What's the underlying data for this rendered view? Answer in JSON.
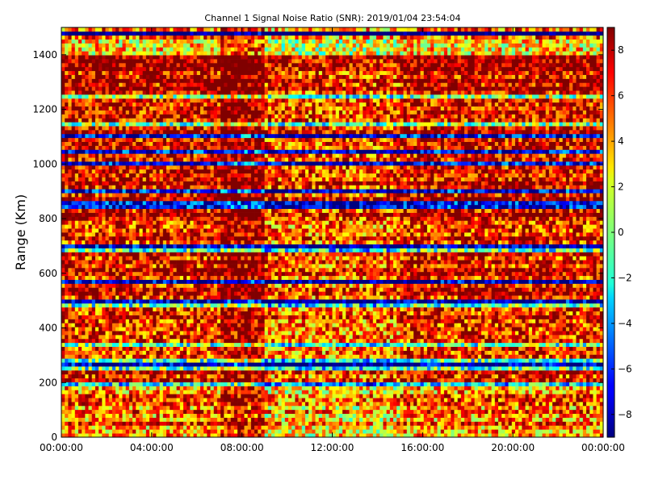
{
  "chart_data": {
    "type": "heatmap",
    "title": "Channel 1 Signal Noise Ratio (SNR): 2019/01/04 23:54:04",
    "xlabel": "",
    "ylabel": "Range (Km)",
    "x_ticks": [
      "00:00:00",
      "04:00:00",
      "08:00:00",
      "12:00:00",
      "16:00:00",
      "20:00:00",
      "00:00:00"
    ],
    "y_ticks": [
      0,
      200,
      400,
      600,
      800,
      1000,
      1200,
      1400
    ],
    "ylim": [
      0,
      1500
    ],
    "xlim_hours": [
      0,
      24
    ],
    "colorbar": {
      "ticks": [
        -8,
        -6,
        -4,
        -2,
        0,
        2,
        4,
        6,
        8
      ],
      "range": [
        -9,
        9
      ],
      "colormap": "jet"
    },
    "grid": false,
    "range_bands_km": [
      {
        "from": 0,
        "to": 200,
        "mean_snr": 4
      },
      {
        "from": 200,
        "to": 600,
        "mean_snr": 6
      },
      {
        "from": 600,
        "to": 800,
        "mean_snr": 6
      },
      {
        "from": 800,
        "to": 1400,
        "mean_snr": 7
      },
      {
        "from": 1400,
        "to": 1500,
        "mean_snr": 3
      }
    ]
  }
}
